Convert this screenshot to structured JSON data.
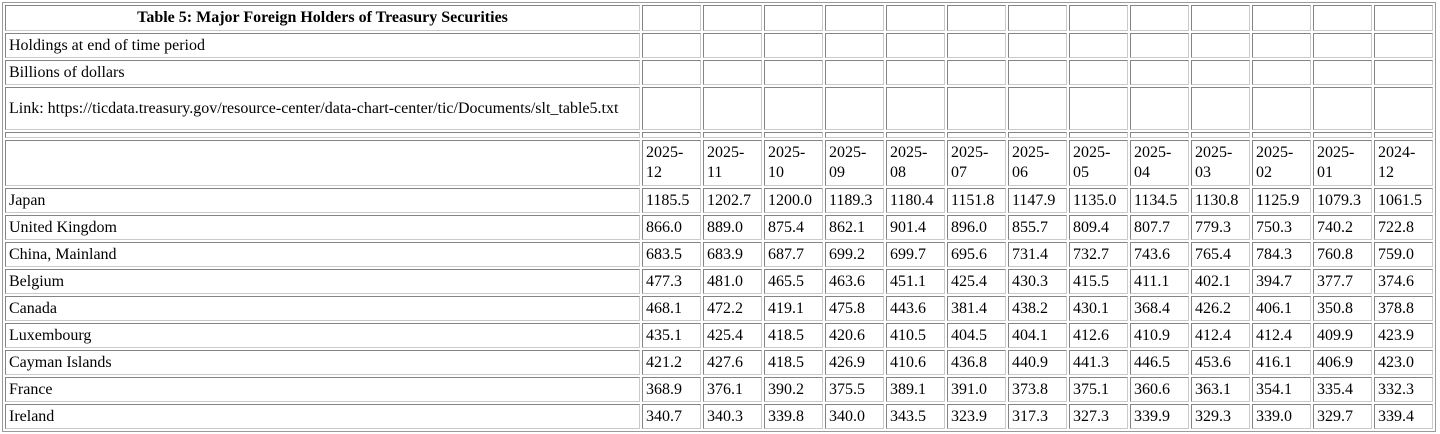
{
  "table": {
    "title": "Table 5: Major Foreign Holders of Treasury Securities",
    "note_holdings": "Holdings at end of time period",
    "note_units": "Billions of dollars",
    "link_text": "Link: https://ticdata.treasury.gov/resource-center/data-chart-center/tic/Documents/slt_table5.txt",
    "period_headers": [
      "2025-12",
      "2025-11",
      "2025-10",
      "2025-09",
      "2025-08",
      "2025-07",
      "2025-06",
      "2025-05",
      "2025-04",
      "2025-03",
      "2025-02",
      "2025-01",
      "2024-12"
    ],
    "rows": [
      {
        "country": "Japan",
        "values": [
          "1185.5",
          "1202.7",
          "1200.0",
          "1189.3",
          "1180.4",
          "1151.8",
          "1147.9",
          "1135.0",
          "1134.5",
          "1130.8",
          "1125.9",
          "1079.3",
          "1061.5"
        ]
      },
      {
        "country": "United Kingdom",
        "values": [
          "866.0",
          "889.0",
          "875.4",
          "862.1",
          "901.4",
          "896.0",
          "855.7",
          "809.4",
          "807.7",
          "779.3",
          "750.3",
          "740.2",
          "722.8"
        ]
      },
      {
        "country": "China, Mainland",
        "values": [
          "683.5",
          "683.9",
          "687.7",
          "699.2",
          "699.7",
          "695.6",
          "731.4",
          "732.7",
          "743.6",
          "765.4",
          "784.3",
          "760.8",
          "759.0"
        ]
      },
      {
        "country": "Belgium",
        "values": [
          "477.3",
          "481.0",
          "465.5",
          "463.6",
          "451.1",
          "425.4",
          "430.3",
          "415.5",
          "411.1",
          "402.1",
          "394.7",
          "377.7",
          "374.6"
        ]
      },
      {
        "country": "Canada",
        "values": [
          "468.1",
          "472.2",
          "419.1",
          "475.8",
          "443.6",
          "381.4",
          "438.2",
          "430.1",
          "368.4",
          "426.2",
          "406.1",
          "350.8",
          "378.8"
        ]
      },
      {
        "country": "Luxembourg",
        "values": [
          "435.1",
          "425.4",
          "418.5",
          "420.6",
          "410.5",
          "404.5",
          "404.1",
          "412.6",
          "410.9",
          "412.4",
          "412.4",
          "409.9",
          "423.9"
        ]
      },
      {
        "country": "Cayman Islands",
        "values": [
          "421.2",
          "427.6",
          "418.5",
          "426.9",
          "410.6",
          "436.8",
          "440.9",
          "441.3",
          "446.5",
          "453.6",
          "416.1",
          "406.9",
          "423.0"
        ]
      },
      {
        "country": "France",
        "values": [
          "368.9",
          "376.1",
          "390.2",
          "375.5",
          "389.1",
          "391.0",
          "373.8",
          "375.1",
          "360.6",
          "363.1",
          "354.1",
          "335.4",
          "332.3"
        ]
      },
      {
        "country": "Ireland",
        "values": [
          "340.7",
          "340.3",
          "339.8",
          "340.0",
          "343.5",
          "323.9",
          "317.3",
          "327.3",
          "339.9",
          "329.3",
          "339.0",
          "329.7",
          "339.4"
        ]
      }
    ]
  }
}
